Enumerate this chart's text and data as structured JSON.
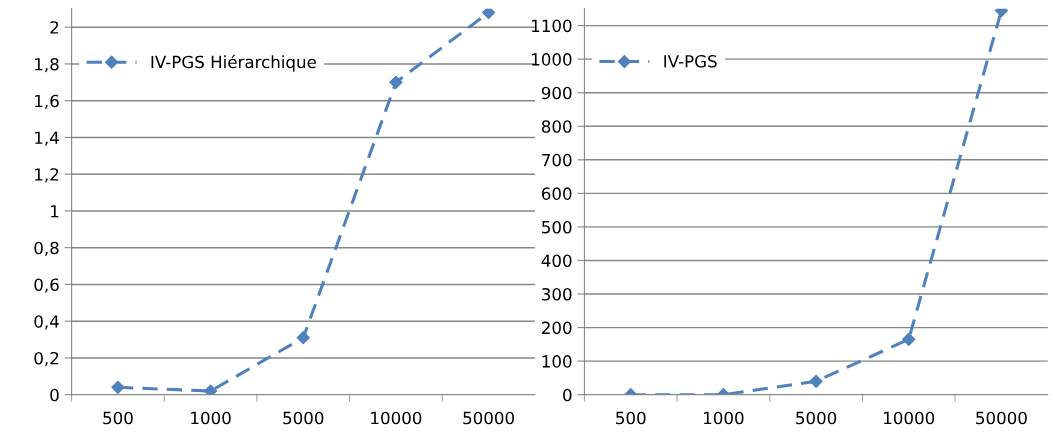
{
  "chart_data": [
    {
      "type": "line",
      "categories": [
        "500",
        "1000",
        "5000",
        "10000",
        "50000"
      ],
      "series": [
        {
          "name": "IV-PGS Hiérarchique",
          "color": "#4f81bd",
          "values": [
            0.04,
            0.02,
            0.31,
            1.7,
            2.08
          ]
        }
      ],
      "ylim": [
        0,
        2.1
      ],
      "yticks": [
        0,
        {
          "value": 0.2,
          "label": "0,2"
        },
        {
          "value": 0.4,
          "label": "0,4"
        },
        {
          "value": 0.6,
          "label": "0,6"
        },
        {
          "value": 0.8,
          "label": "0,8"
        },
        1,
        {
          "value": 1.2,
          "label": "1,2"
        },
        {
          "value": 1.4,
          "label": "1,4"
        },
        {
          "value": 1.6,
          "label": "1,6"
        },
        {
          "value": 1.8,
          "label": "1,8"
        },
        2
      ],
      "grid": "y",
      "legend": "top left",
      "marker": "diamond",
      "line_style": "dashed"
    },
    {
      "type": "line",
      "categories": [
        "500",
        "1000",
        "5000",
        "10000",
        "50000"
      ],
      "series": [
        {
          "name": "IV-PGS",
          "color": "#4f81bd",
          "values": [
            0,
            0,
            40,
            165,
            1145
          ]
        }
      ],
      "ylim": [
        0,
        1150
      ],
      "yticks": [
        0,
        100,
        200,
        300,
        400,
        500,
        600,
        700,
        800,
        900,
        1000,
        1100
      ],
      "grid": "y",
      "legend": "top left",
      "marker": "diamond",
      "line_style": "dashed"
    }
  ]
}
